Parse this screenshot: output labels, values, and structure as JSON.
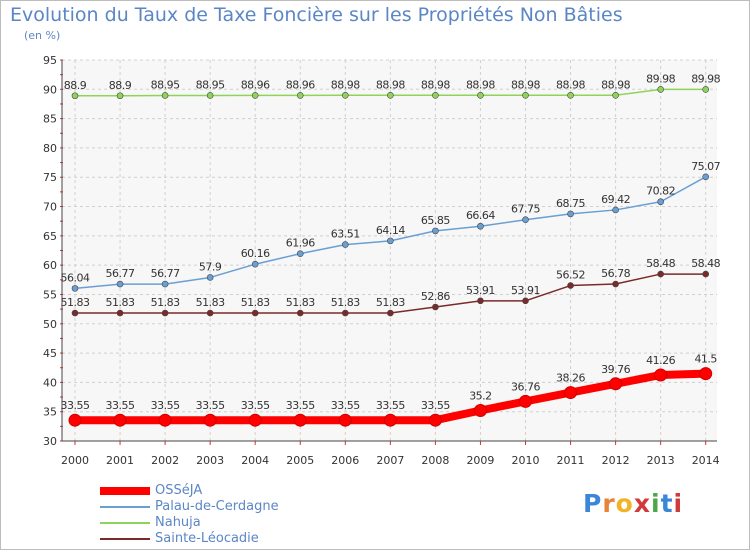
{
  "title": "Evolution du Taux de Taxe Foncière sur les Propriétés Non Bâties",
  "unit_label": "(en %)",
  "logo_text": "Proxiti",
  "chart_data": {
    "type": "line",
    "title": "Evolution du Taux de Taxe Foncière sur les Propriétés Non Bâties",
    "ylabel": "(en %)",
    "xlabel": "",
    "ylim": [
      30,
      95
    ],
    "yticks": [
      "30",
      "35",
      "40",
      "45",
      "50",
      "55",
      "60",
      "65",
      "70",
      "75",
      "80",
      "85",
      "90",
      "95"
    ],
    "categories": [
      "2000",
      "2001",
      "2002",
      "2003",
      "2004",
      "2005",
      "2006",
      "2007",
      "2008",
      "2009",
      "2010",
      "2011",
      "2012",
      "2013",
      "2014"
    ],
    "grid": true,
    "legend_position": "bottom-left",
    "series": [
      {
        "name": "OSSéJA",
        "color": "#ff0000",
        "values": [
          33.55,
          33.55,
          33.55,
          33.55,
          33.55,
          33.55,
          33.55,
          33.55,
          33.55,
          35.2,
          36.76,
          38.26,
          39.76,
          41.26,
          41.5
        ],
        "labels": [
          "33.55",
          "33.55",
          "33.55",
          "33.55",
          "33.55",
          "33.55",
          "33.55",
          "33.55",
          "33.55",
          "35.2",
          "36.76",
          "38.26",
          "39.76",
          "41.26",
          "41.5"
        ]
      },
      {
        "name": "Palau-de-Cerdagne",
        "color": "#6a9fd4",
        "values": [
          56.04,
          56.77,
          56.77,
          57.9,
          60.16,
          61.96,
          63.51,
          64.14,
          65.85,
          66.64,
          67.75,
          68.75,
          69.42,
          70.82,
          75.07
        ],
        "labels": [
          "56.04",
          "56.77",
          "56.77",
          "57.9",
          "60.16",
          "61.96",
          "63.51",
          "64.14",
          "65.85",
          "66.64",
          "67.75",
          "68.75",
          "69.42",
          "70.82",
          "75.07"
        ]
      },
      {
        "name": "Nahuja",
        "color": "#8fd45a",
        "values": [
          88.9,
          88.9,
          88.95,
          88.95,
          88.96,
          88.96,
          88.98,
          88.98,
          88.98,
          88.98,
          88.98,
          88.98,
          88.98,
          89.98,
          89.98
        ],
        "labels": [
          "88.9",
          "88.9",
          "88.95",
          "88.95",
          "88.96",
          "88.96",
          "88.98",
          "88.98",
          "88.98",
          "88.98",
          "88.98",
          "88.98",
          "88.98",
          "89.98",
          "89.98"
        ]
      },
      {
        "name": "Sainte-Léocadie",
        "color": "#7a2a2a",
        "values": [
          51.83,
          51.83,
          51.83,
          51.83,
          51.83,
          51.83,
          51.83,
          51.83,
          52.86,
          53.91,
          53.91,
          56.52,
          56.78,
          58.48,
          58.48
        ],
        "labels": [
          "51.83",
          "51.83",
          "51.83",
          "51.83",
          "51.83",
          "51.83",
          "51.83",
          "51.83",
          "52.86",
          "53.91",
          "53.91",
          "56.52",
          "56.78",
          "58.48",
          "58.48"
        ]
      }
    ]
  }
}
